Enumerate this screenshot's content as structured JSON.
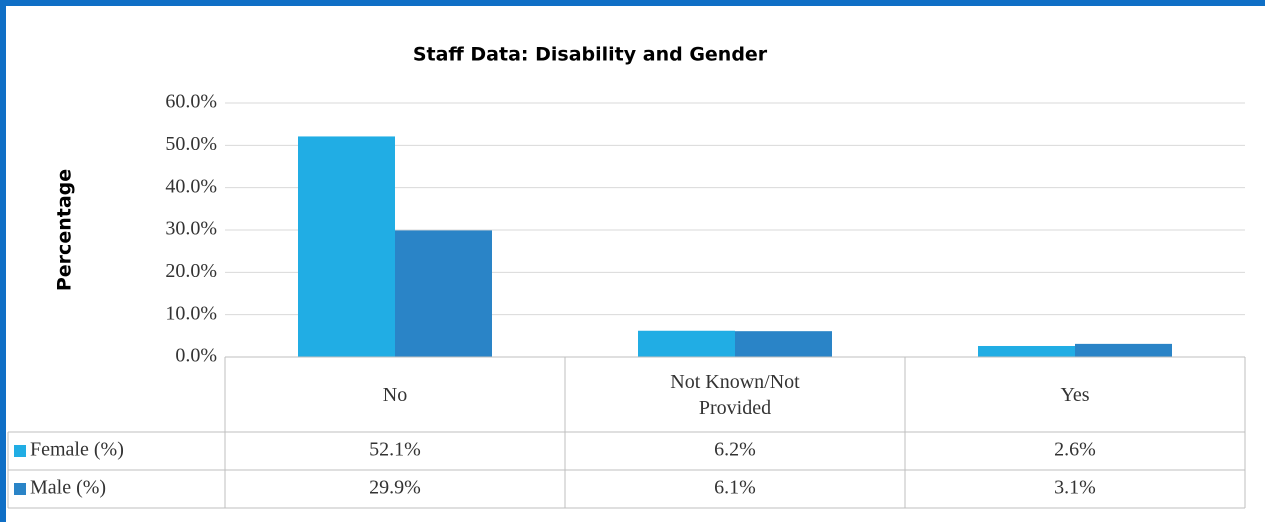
{
  "chart_data": {
    "type": "bar",
    "title": "Staff Data: Disability and Gender",
    "y_label": "Percentage",
    "categories": [
      "No",
      "Not Known/Not Provided",
      "Yes"
    ],
    "series": [
      {
        "name": "Female (%)",
        "color": "#21ade4",
        "values": [
          52.1,
          6.2,
          2.6
        ],
        "value_labels": [
          "52.1%",
          "6.2%",
          "2.6%"
        ]
      },
      {
        "name": "Male (%)",
        "color": "#2a84c7",
        "values": [
          29.9,
          6.1,
          3.1
        ],
        "value_labels": [
          "29.9%",
          "6.1%",
          "3.1%"
        ]
      }
    ],
    "ylim": [
      0,
      60
    ],
    "yticks": [
      {
        "value": 0,
        "label": "0.0%"
      },
      {
        "value": 10,
        "label": "10.0%"
      },
      {
        "value": 20,
        "label": "20.0%"
      },
      {
        "value": 30,
        "label": "30.0%"
      },
      {
        "value": 40,
        "label": "40.0%"
      },
      {
        "value": 50,
        "label": "50.0%"
      },
      {
        "value": 60,
        "label": "60.0%"
      }
    ],
    "grid": true
  }
}
